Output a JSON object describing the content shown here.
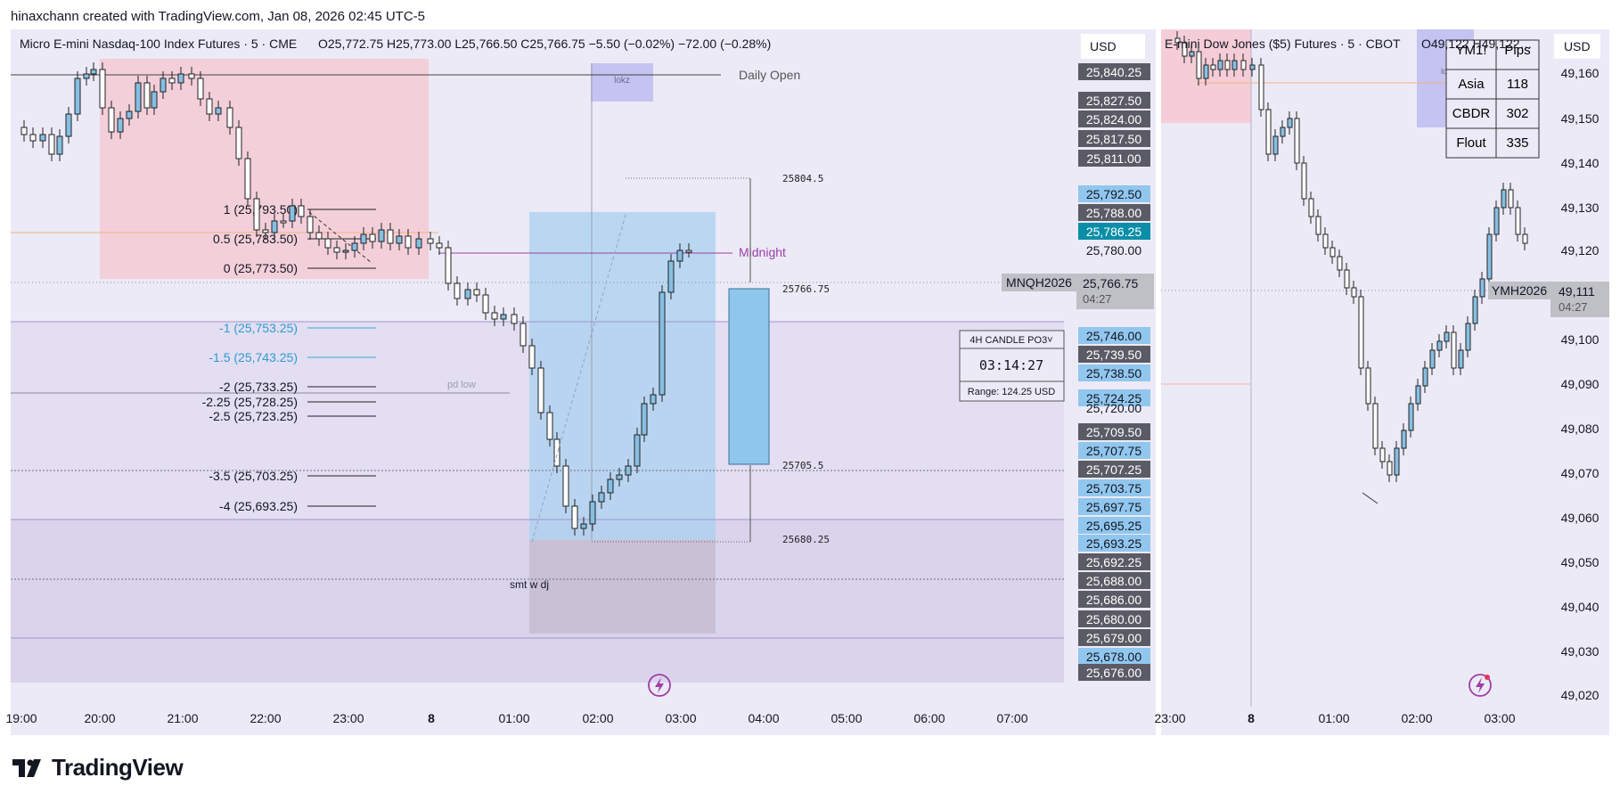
{
  "caption": "hinaxchann created with TradingView.com, Jan 08, 2026 02:45 UTC-5",
  "brand": "TradingView",
  "left_chart": {
    "title": "Micro E-mini Nasdaq-100 Index Futures · 5 · CME",
    "ohlc": "O25,772.75  H25,773.00  L25,766.50  C25,766.75  −5.50 (−0.02%)  −72.00 (−0.28%)",
    "currency": "USD",
    "daily_open_label": "Daily Open",
    "midnight_label": "Midnight",
    "lokz_label": "lokz",
    "pd_low_label": "pd low",
    "smt_label": "smt w dj",
    "fib_labels": [
      "1 (25,793.50)",
      "0.5 (25,783.50)",
      "0 (25,773.50)",
      "-1 (25,753.25)",
      "-1.5 (25,743.25)",
      "-2 (25,733.25)",
      "-2.25 (25,728.25)",
      "-2.5 (25,723.25)",
      "-3.5 (25,703.25)",
      "-4 (25,693.25)"
    ],
    "level_labels": [
      "25804.5",
      "25766.75",
      "25705.5",
      "25680.25"
    ],
    "symbol_tag": "MNQH2026",
    "current_price": "25,766.75",
    "countdown": "04:27",
    "axis_prices": [
      {
        "text": "25,840.25",
        "kind": "dark"
      },
      {
        "text": "25,827.50",
        "kind": "dark"
      },
      {
        "text": "25,824.00",
        "kind": "dark"
      },
      {
        "text": "25,817.50",
        "kind": "dark"
      },
      {
        "text": "25,811.00",
        "kind": "dark"
      },
      {
        "text": "25,792.50",
        "kind": "blue"
      },
      {
        "text": "25,788.00",
        "kind": "dark"
      },
      {
        "text": "25,786.25",
        "kind": "teal"
      },
      {
        "text": "25,780.00",
        "kind": "plain"
      },
      {
        "text": "25,746.00",
        "kind": "blue"
      },
      {
        "text": "25,739.50",
        "kind": "dark"
      },
      {
        "text": "25,738.50",
        "kind": "blue"
      },
      {
        "text": "25,724.25",
        "kind": "blue"
      },
      {
        "text": "25,720.00",
        "kind": "plain"
      },
      {
        "text": "25,709.50",
        "kind": "dark"
      },
      {
        "text": "25,707.75",
        "kind": "blue"
      },
      {
        "text": "25,707.25",
        "kind": "dark"
      },
      {
        "text": "25,703.75",
        "kind": "blue"
      },
      {
        "text": "25,697.75",
        "kind": "blue"
      },
      {
        "text": "25,695.25",
        "kind": "blue"
      },
      {
        "text": "25,693.25",
        "kind": "blue"
      },
      {
        "text": "25,692.25",
        "kind": "dark"
      },
      {
        "text": "25,688.00",
        "kind": "dark"
      },
      {
        "text": "25,686.00",
        "kind": "dark"
      },
      {
        "text": "25,680.00",
        "kind": "dark"
      },
      {
        "text": "25,679.00",
        "kind": "dark"
      },
      {
        "text": "25,678.00",
        "kind": "blue"
      },
      {
        "text": "25,676.00",
        "kind": "dark"
      }
    ],
    "time_labels": [
      "19:00",
      "20:00",
      "21:00",
      "22:00",
      "23:00",
      "8",
      "01:00",
      "02:00",
      "03:00",
      "04:00",
      "05:00",
      "06:00",
      "07:00"
    ],
    "po3_widget": {
      "title": "4H CANDLE PO3˅",
      "timer": "03:14:27",
      "range": "Range: 124.25 USD"
    }
  },
  "right_chart": {
    "title": "E-mini Dow Jones ($5) Futures · 5 · CBOT",
    "ohlc": "O49,122  H49,122…",
    "currency": "USD",
    "symbol_tag": "YMH2026",
    "current_price": "49,111",
    "countdown": "04:27",
    "lokz_label": "lokz",
    "price_ticks": [
      "49,160",
      "49,150",
      "49,140",
      "49,130",
      "49,120",
      "49,100",
      "49,090",
      "49,080",
      "49,070",
      "49,060",
      "49,050",
      "49,040",
      "49,030",
      "49,020"
    ],
    "time_labels": [
      "23:00",
      "8",
      "01:00",
      "02:00",
      "03:00"
    ],
    "pips_table": {
      "headers": [
        "YM1!",
        "Pips"
      ],
      "rows": [
        [
          "Asia",
          "118"
        ],
        [
          "CBDR",
          "302"
        ],
        [
          "Flout",
          "335"
        ]
      ]
    }
  },
  "colors": {
    "pane_bg": "#eceaf6",
    "session_red": "#f6c6cf",
    "box_blue": "#a9d0ef",
    "candle_up": "#86bfe3",
    "axis_blue": "#91c6ee",
    "axis_dark": "#5b5b66",
    "axis_teal": "#0a8ea8",
    "midnight": "#9c3fa6"
  },
  "icons": [
    "lightning-icon",
    "tradingview-logo"
  ]
}
